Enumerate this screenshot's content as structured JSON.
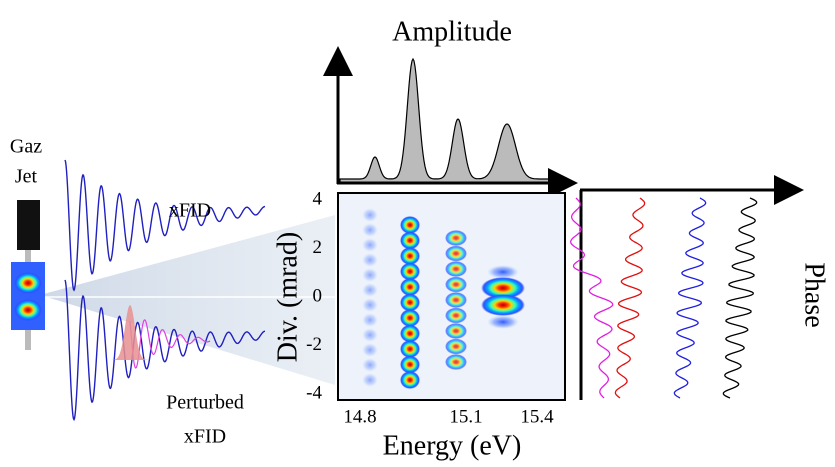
{
  "panels": {
    "amplitude": {
      "title": "Amplitude"
    },
    "gas_jet": {
      "label_line1": "Gaz",
      "label_line2": "Jet"
    },
    "waves": {
      "xfid": "xFID",
      "perturbed_line1": "Perturbed",
      "perturbed_line2": "xFID"
    },
    "map": {
      "y_label": "Div. (mrad)",
      "x_label": "Energy (eV)",
      "yticks": [
        4,
        2,
        0,
        -2,
        -4
      ],
      "xticks": [
        14.8,
        15.1,
        15.4
      ]
    },
    "phase": {
      "label": "Phase"
    }
  }
}
